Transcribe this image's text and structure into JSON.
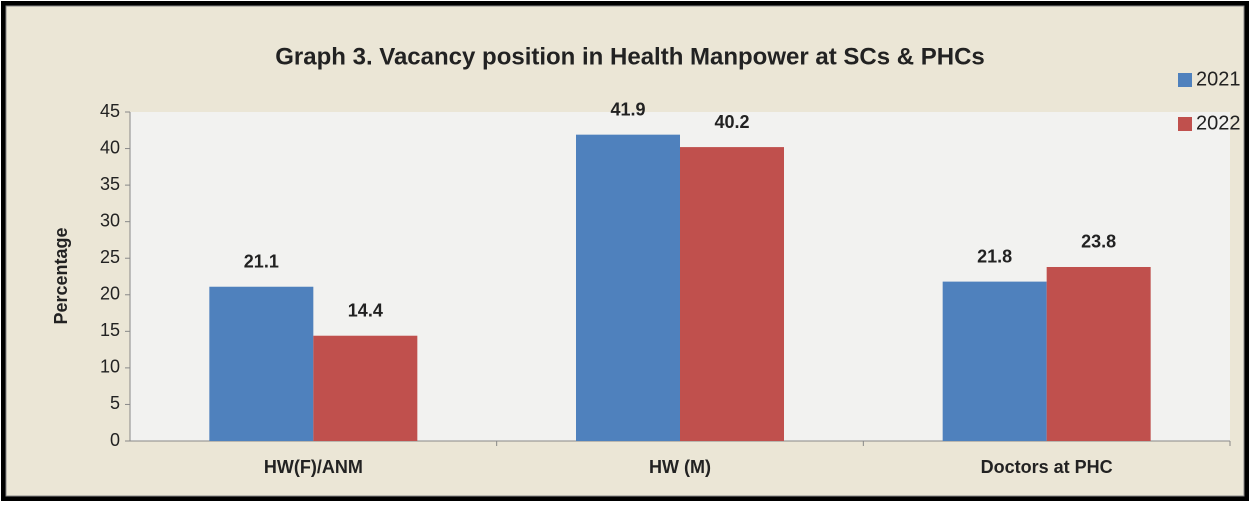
{
  "chart_data": {
    "type": "bar",
    "title": "Graph 3. Vacancy position in Health Manpower at SCs & PHCs",
    "y_label": "Percentage",
    "categories": [
      "HW(F)/ANM",
      "HW (M)",
      "Doctors at PHC"
    ],
    "series": [
      {
        "name": "2021",
        "color": "#4f81bd",
        "values": [
          21.1,
          41.9,
          21.8
        ]
      },
      {
        "name": "2022",
        "color": "#c0504d",
        "values": [
          14.4,
          40.2,
          23.8
        ]
      }
    ],
    "ylim": [
      0,
      45
    ],
    "yticks": [
      0,
      5,
      10,
      15,
      20,
      25,
      30,
      35,
      40,
      45
    ],
    "legend": "top-right",
    "data_labels": true
  }
}
